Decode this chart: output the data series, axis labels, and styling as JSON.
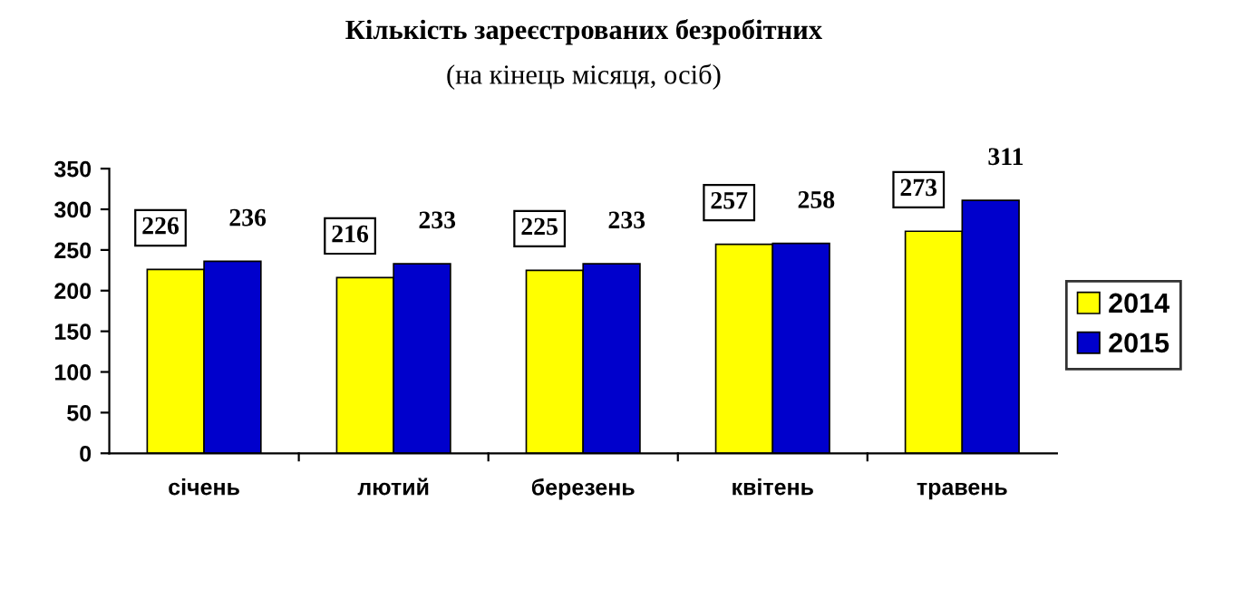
{
  "chart_data": {
    "type": "bar",
    "title": "Кількість зареєстрованих безробітних",
    "subtitle": "(на кінець місяця, осіб)",
    "categories": [
      "січень",
      "лютий",
      "березень",
      "квітень",
      "травень"
    ],
    "series": [
      {
        "name": "2014",
        "color": "#ffff00",
        "values": [
          226,
          216,
          225,
          257,
          273
        ]
      },
      {
        "name": "2015",
        "color": "#0000cc",
        "values": [
          236,
          233,
          233,
          258,
          311
        ]
      }
    ],
    "ylim": [
      0,
      350
    ],
    "yticks": [
      0,
      50,
      100,
      150,
      200,
      250,
      300,
      350
    ],
    "grid": false,
    "legend": "right",
    "data_labels": true
  }
}
